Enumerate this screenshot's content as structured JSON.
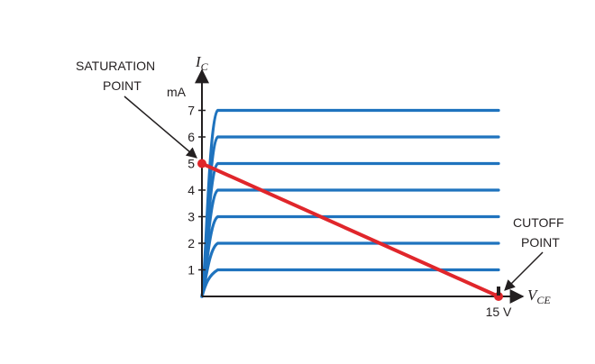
{
  "chart_data": {
    "type": "line",
    "title": "",
    "y_axis": {
      "symbol": "I",
      "subscript": "C",
      "unit": "mA",
      "range": [
        0,
        7.5
      ],
      "ticks": [
        "1",
        "2",
        "3",
        "4",
        "5",
        "6",
        "7"
      ]
    },
    "x_axis": {
      "symbol": "V",
      "subscript": "CE",
      "range": [
        0,
        16
      ],
      "tick_label": "15 V",
      "tick_value": 15
    },
    "curves": {
      "color": "#1f73be",
      "saturation_knee_v": 0.8,
      "end_v": 15,
      "levels_mA": [
        1,
        2,
        3,
        4,
        5,
        6,
        7
      ]
    },
    "load_line": {
      "color": "#e0262b",
      "points": [
        {
          "v": 0,
          "i": 5
        },
        {
          "v": 15,
          "i": 0
        }
      ]
    },
    "annotations": {
      "saturation": {
        "line1": "SATURATION",
        "line2": "POINT"
      },
      "cutoff": {
        "line1": "CUTOFF",
        "line2": "POINT"
      }
    }
  }
}
